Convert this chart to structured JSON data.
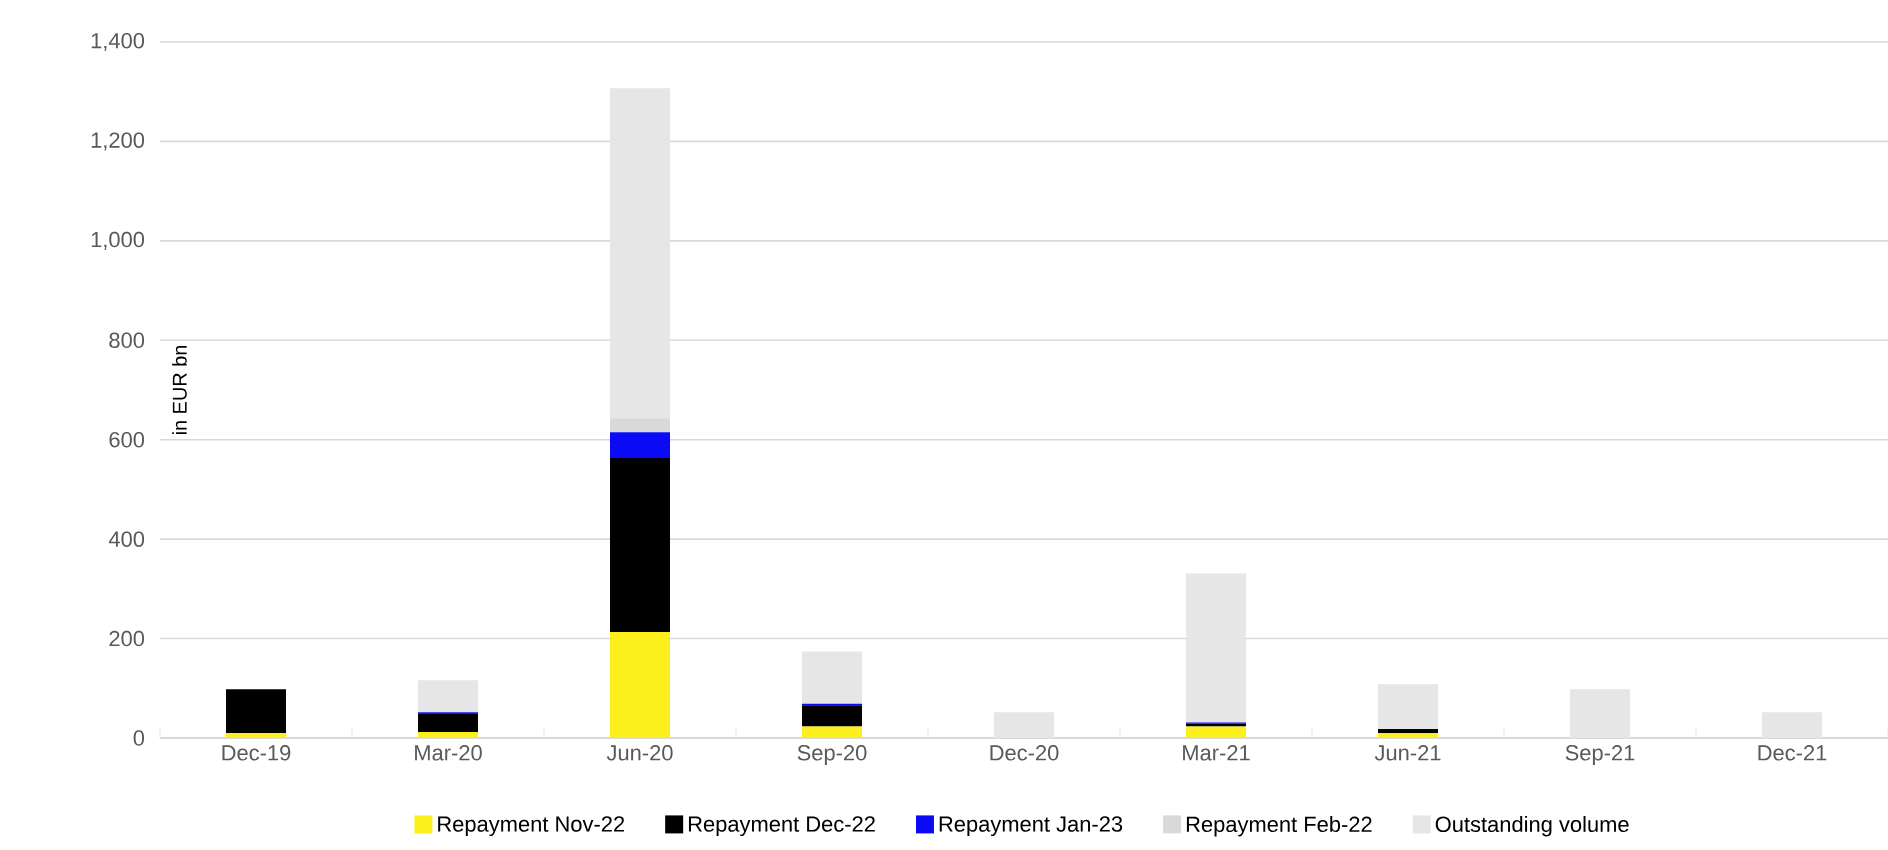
{
  "chart_data": {
    "type": "bar",
    "stacked": true,
    "ylabel": "in EUR bn",
    "categories": [
      "Dec-19",
      "Mar-20",
      "Jun-20",
      "Sep-20",
      "Dec-20",
      "Mar-21",
      "Jun-21",
      "Sep-21",
      "Dec-21"
    ],
    "series": [
      {
        "name": "Repayment Nov-22",
        "color": "#fbf01c",
        "values": [
          10,
          12,
          213,
          23,
          0,
          23,
          10,
          0,
          0
        ]
      },
      {
        "name": "Repayment Dec-22",
        "color": "#000000",
        "values": [
          88,
          38,
          350,
          43,
          0,
          6,
          8,
          0,
          0
        ]
      },
      {
        "name": "Repayment Jan-23",
        "color": "#0a0af5",
        "values": [
          0,
          2,
          52,
          3,
          0,
          2,
          0,
          0,
          0
        ]
      },
      {
        "name": "Repayment Feb-22",
        "color": "#d9d9d9",
        "values": [
          0,
          0,
          28,
          0,
          0,
          0,
          0,
          0,
          0
        ]
      },
      {
        "name": "Outstanding volume",
        "color": "#e6e6e6",
        "values": [
          0,
          64,
          664,
          105,
          52,
          300,
          90,
          98,
          52
        ]
      }
    ],
    "ylim": [
      0,
      1400
    ],
    "yticks": [
      0,
      200,
      400,
      600,
      800,
      {
        "value": 1000,
        "label": "1,000"
      },
      {
        "value": 1200,
        "label": "1,200"
      },
      {
        "value": 1400,
        "label": "1,400"
      }
    ],
    "grid": "y",
    "legend": "bottom"
  }
}
